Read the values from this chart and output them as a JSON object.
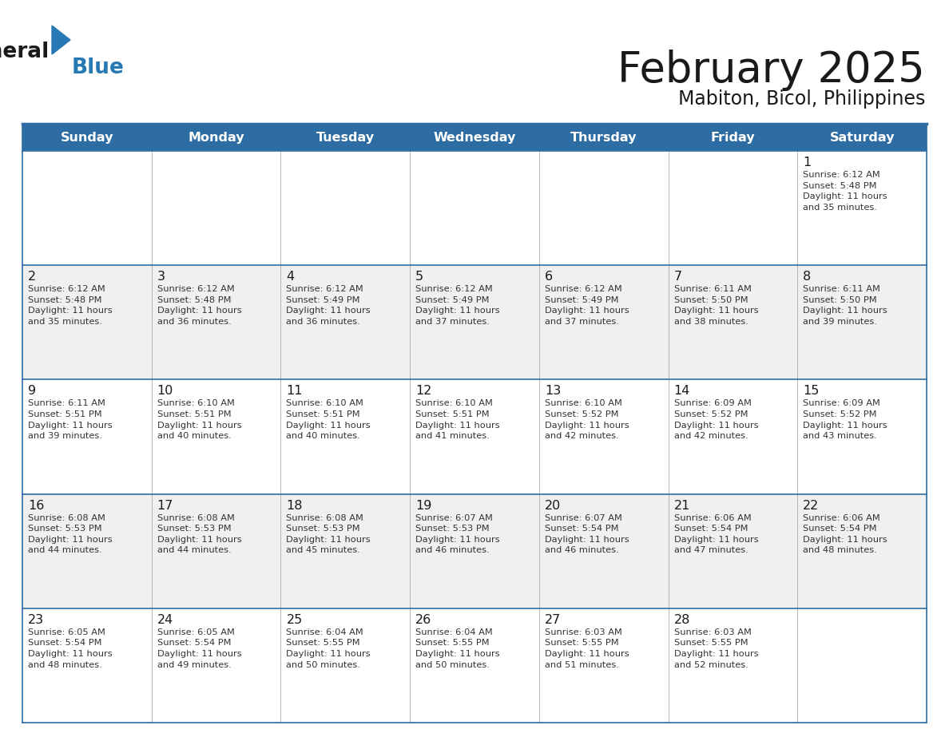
{
  "title": "February 2025",
  "subtitle": "Mabiton, Bicol, Philippines",
  "header_bg_color": "#2E6DA4",
  "header_text_color": "#FFFFFF",
  "cell_bg_white": "#FFFFFF",
  "cell_bg_gray": "#F0F0F0",
  "border_color": "#2E6DA4",
  "grid_line_color": "#AAAAAA",
  "day_headers": [
    "Sunday",
    "Monday",
    "Tuesday",
    "Wednesday",
    "Thursday",
    "Friday",
    "Saturday"
  ],
  "title_color": "#1a1a1a",
  "subtitle_color": "#1a1a1a",
  "cell_text_color": "#333333",
  "day_num_color": "#1a1a1a",
  "logo_black": "#1a1a1a",
  "logo_blue": "#2878B4",
  "calendar": [
    [
      null,
      null,
      null,
      null,
      null,
      null,
      {
        "day": 1,
        "sunrise": "6:12 AM",
        "sunset": "5:48 PM",
        "daylight": "11 hours and 35 minutes."
      }
    ],
    [
      {
        "day": 2,
        "sunrise": "6:12 AM",
        "sunset": "5:48 PM",
        "daylight": "11 hours and 35 minutes."
      },
      {
        "day": 3,
        "sunrise": "6:12 AM",
        "sunset": "5:48 PM",
        "daylight": "11 hours and 36 minutes."
      },
      {
        "day": 4,
        "sunrise": "6:12 AM",
        "sunset": "5:49 PM",
        "daylight": "11 hours and 36 minutes."
      },
      {
        "day": 5,
        "sunrise": "6:12 AM",
        "sunset": "5:49 PM",
        "daylight": "11 hours and 37 minutes."
      },
      {
        "day": 6,
        "sunrise": "6:12 AM",
        "sunset": "5:49 PM",
        "daylight": "11 hours and 37 minutes."
      },
      {
        "day": 7,
        "sunrise": "6:11 AM",
        "sunset": "5:50 PM",
        "daylight": "11 hours and 38 minutes."
      },
      {
        "day": 8,
        "sunrise": "6:11 AM",
        "sunset": "5:50 PM",
        "daylight": "11 hours and 39 minutes."
      }
    ],
    [
      {
        "day": 9,
        "sunrise": "6:11 AM",
        "sunset": "5:51 PM",
        "daylight": "11 hours and 39 minutes."
      },
      {
        "day": 10,
        "sunrise": "6:10 AM",
        "sunset": "5:51 PM",
        "daylight": "11 hours and 40 minutes."
      },
      {
        "day": 11,
        "sunrise": "6:10 AM",
        "sunset": "5:51 PM",
        "daylight": "11 hours and 40 minutes."
      },
      {
        "day": 12,
        "sunrise": "6:10 AM",
        "sunset": "5:51 PM",
        "daylight": "11 hours and 41 minutes."
      },
      {
        "day": 13,
        "sunrise": "6:10 AM",
        "sunset": "5:52 PM",
        "daylight": "11 hours and 42 minutes."
      },
      {
        "day": 14,
        "sunrise": "6:09 AM",
        "sunset": "5:52 PM",
        "daylight": "11 hours and 42 minutes."
      },
      {
        "day": 15,
        "sunrise": "6:09 AM",
        "sunset": "5:52 PM",
        "daylight": "11 hours and 43 minutes."
      }
    ],
    [
      {
        "day": 16,
        "sunrise": "6:08 AM",
        "sunset": "5:53 PM",
        "daylight": "11 hours and 44 minutes."
      },
      {
        "day": 17,
        "sunrise": "6:08 AM",
        "sunset": "5:53 PM",
        "daylight": "11 hours and 44 minutes."
      },
      {
        "day": 18,
        "sunrise": "6:08 AM",
        "sunset": "5:53 PM",
        "daylight": "11 hours and 45 minutes."
      },
      {
        "day": 19,
        "sunrise": "6:07 AM",
        "sunset": "5:53 PM",
        "daylight": "11 hours and 46 minutes."
      },
      {
        "day": 20,
        "sunrise": "6:07 AM",
        "sunset": "5:54 PM",
        "daylight": "11 hours and 46 minutes."
      },
      {
        "day": 21,
        "sunrise": "6:06 AM",
        "sunset": "5:54 PM",
        "daylight": "11 hours and 47 minutes."
      },
      {
        "day": 22,
        "sunrise": "6:06 AM",
        "sunset": "5:54 PM",
        "daylight": "11 hours and 48 minutes."
      }
    ],
    [
      {
        "day": 23,
        "sunrise": "6:05 AM",
        "sunset": "5:54 PM",
        "daylight": "11 hours and 48 minutes."
      },
      {
        "day": 24,
        "sunrise": "6:05 AM",
        "sunset": "5:54 PM",
        "daylight": "11 hours and 49 minutes."
      },
      {
        "day": 25,
        "sunrise": "6:04 AM",
        "sunset": "5:55 PM",
        "daylight": "11 hours and 50 minutes."
      },
      {
        "day": 26,
        "sunrise": "6:04 AM",
        "sunset": "5:55 PM",
        "daylight": "11 hours and 50 minutes."
      },
      {
        "day": 27,
        "sunrise": "6:03 AM",
        "sunset": "5:55 PM",
        "daylight": "11 hours and 51 minutes."
      },
      {
        "day": 28,
        "sunrise": "6:03 AM",
        "sunset": "5:55 PM",
        "daylight": "11 hours and 52 minutes."
      },
      null
    ]
  ]
}
